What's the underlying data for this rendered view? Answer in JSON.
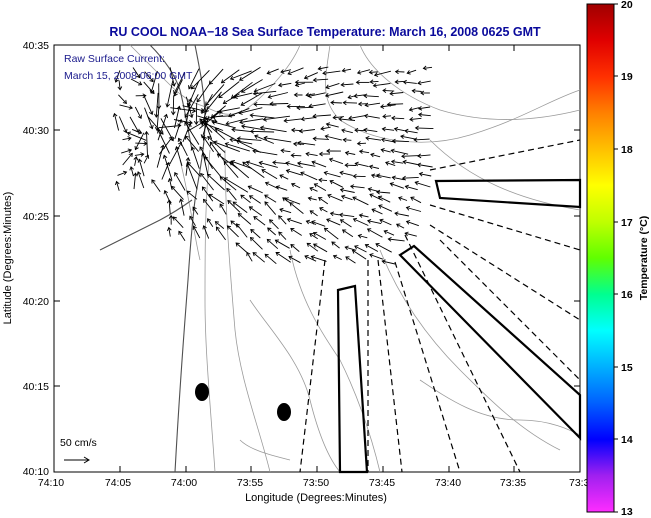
{
  "title": "RU COOL  NOAA−18  Sea Surface Temperature:  March 16, 2008 0625 GMT",
  "annotation": {
    "line1": "Raw Surface Current:",
    "line2": "March 15, 2008 06:00 GMT"
  },
  "scale": {
    "label": "50 cm/s"
  },
  "xlabel": "Longitude (Degrees:Minutes)",
  "ylabel": "Latitude (Degrees:Minutes)",
  "x_ticks": [
    "74:10",
    "74:05",
    "74:00",
    "73:55",
    "73:50",
    "73:45",
    "73:40",
    "73:35",
    "73:3"
  ],
  "y_ticks": [
    "40:35",
    "40:30",
    "40:25",
    "40:20",
    "40:15",
    "40:10"
  ],
  "colorbar": {
    "label": "Temperature (°C)",
    "ticks": [
      "20",
      "19",
      "18",
      "17",
      "16",
      "15",
      "14",
      "13"
    ],
    "range": [
      13,
      20
    ],
    "colors": [
      "#ff2cff",
      "#a020f0",
      "#0000ff",
      "#0060ff",
      "#00b0ff",
      "#00ffff",
      "#00ff90",
      "#60ff00",
      "#c0ff00",
      "#ffff00",
      "#ffc000",
      "#ff8000",
      "#ff3000",
      "#e00000",
      "#a00000"
    ]
  },
  "chart_data": {
    "type": "map",
    "xlim": [
      -74.1667,
      -73.5
    ],
    "ylim": [
      40.1667,
      40.5833
    ],
    "dots_lonlat": [
      [
        -73.98,
        40.245
      ],
      [
        -73.927,
        40.225
      ]
    ]
  }
}
